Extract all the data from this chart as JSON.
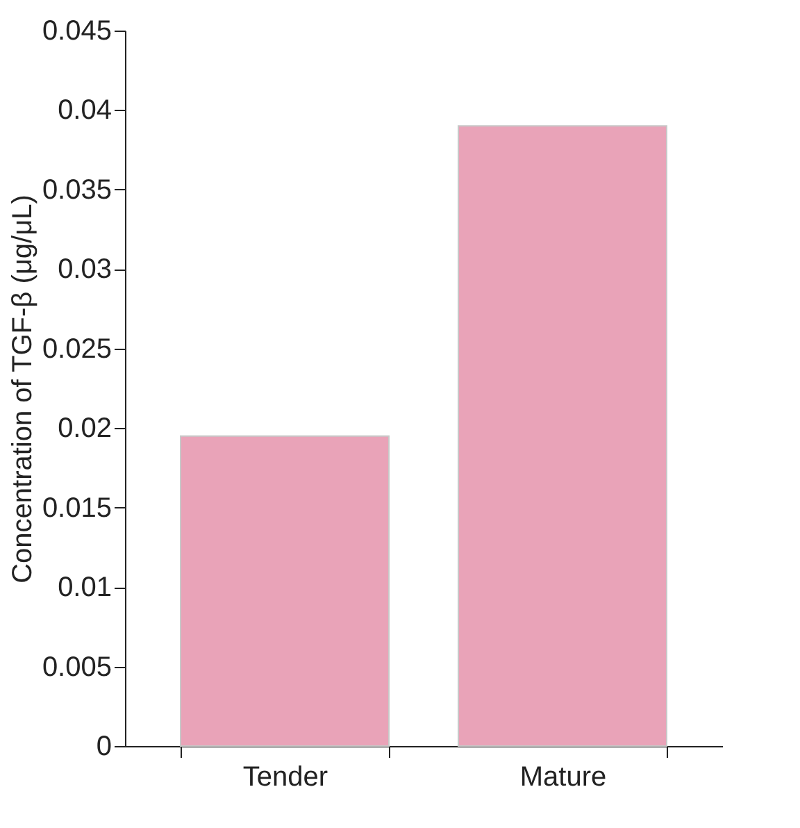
{
  "chart_data": {
    "type": "bar",
    "ylabel": "Concentration of TGF-β (μg/μL)",
    "categories": [
      "Tender",
      "Mature"
    ],
    "values": [
      0.0195,
      0.039
    ],
    "color": "#e9a3b8",
    "ylim": [
      0,
      0.045
    ],
    "yticks": [
      0,
      0.005,
      0.01,
      0.015,
      0.02,
      0.025,
      0.03,
      0.035,
      0.04,
      0.045
    ],
    "grid": false
  }
}
